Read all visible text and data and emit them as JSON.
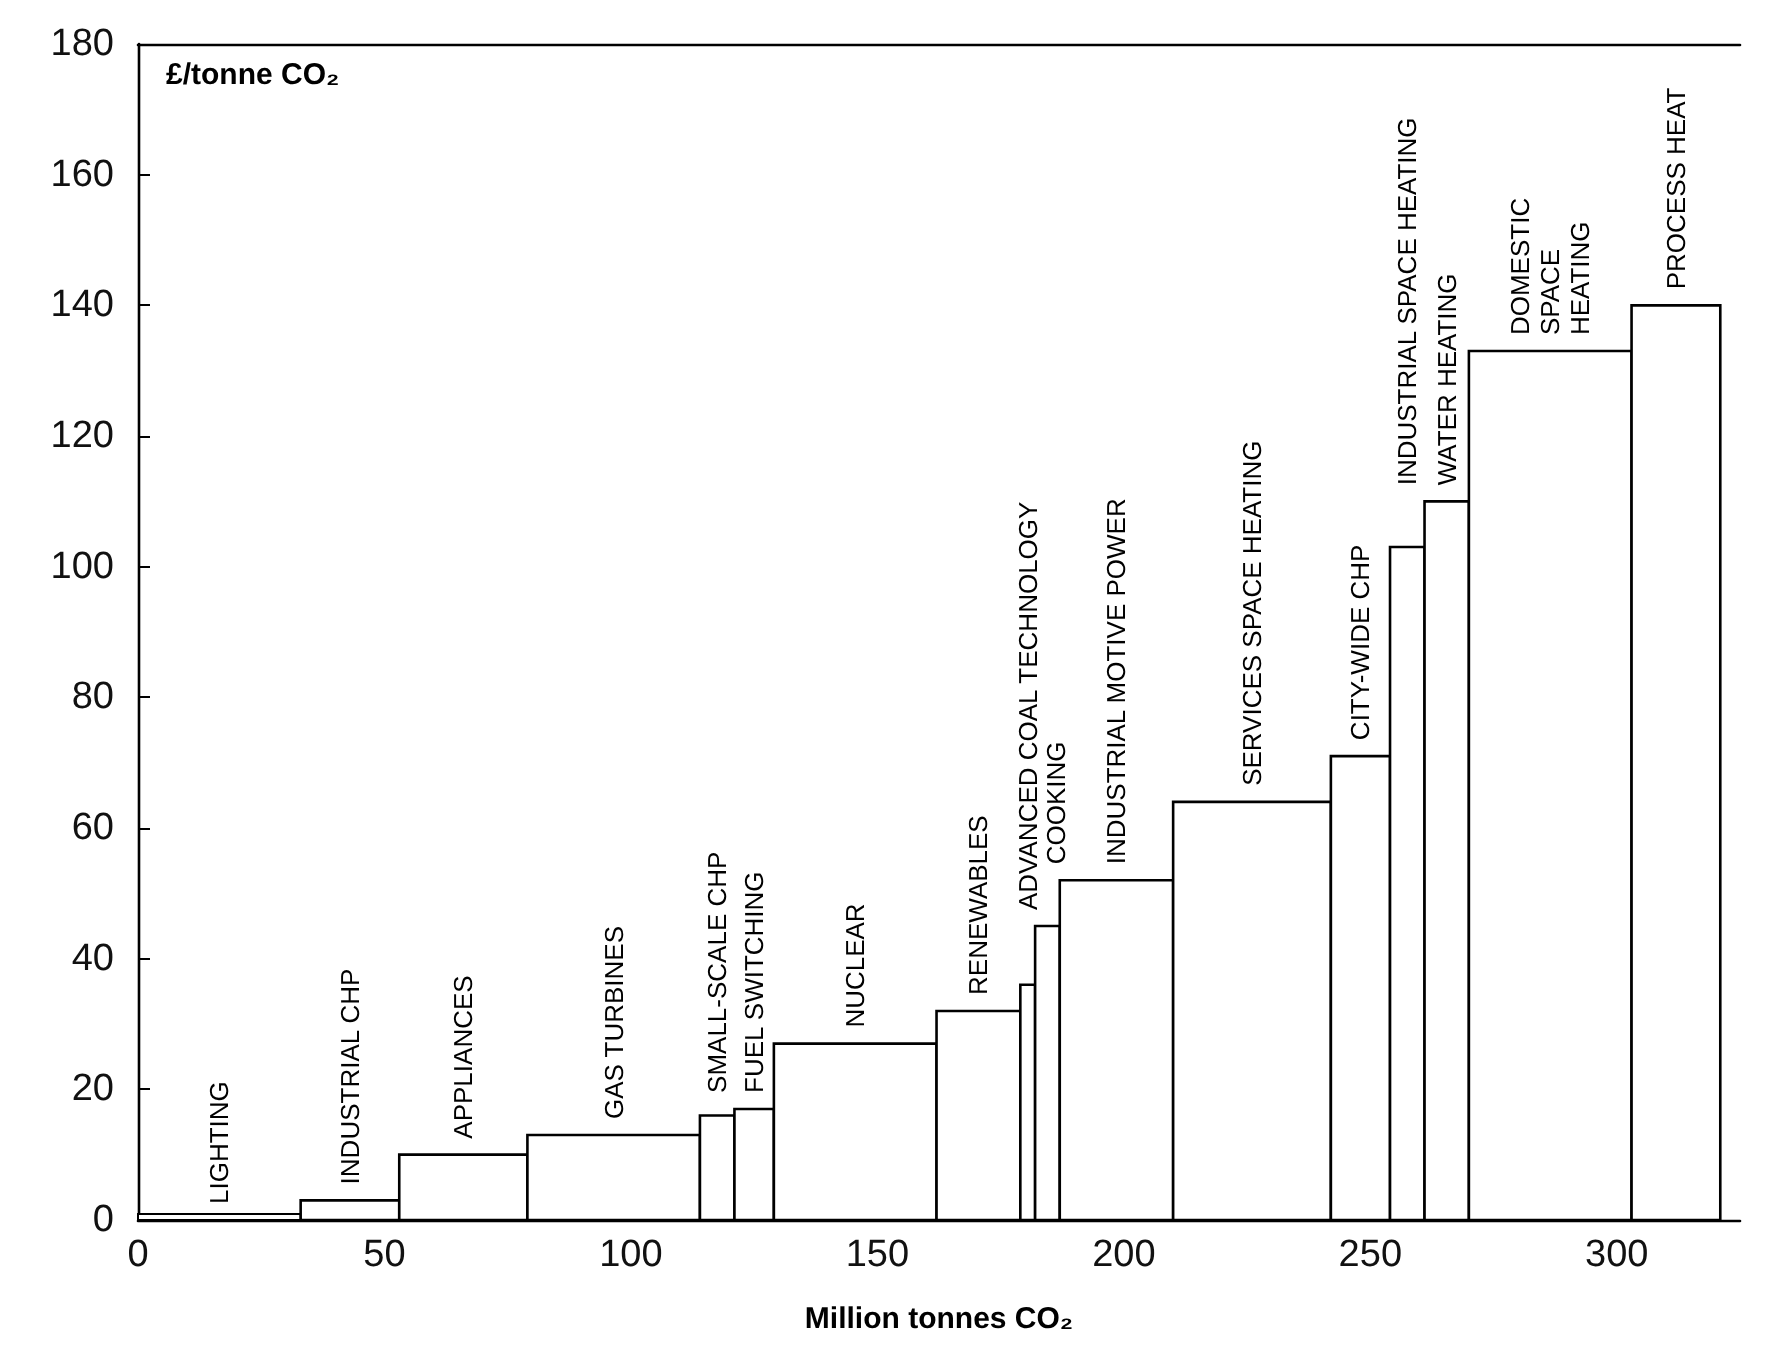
{
  "chart_data": {
    "type": "histogram",
    "ylabel": "£/tonne CO₂",
    "xlabel": "Million tonnes CO₂",
    "bins": [
      0,
      33,
      53,
      79,
      114,
      121,
      129,
      162,
      179,
      182,
      187,
      210,
      242,
      254,
      261,
      270,
      303,
      321
    ],
    "values": [
      0,
      3,
      10,
      13,
      16,
      17,
      27,
      32,
      36,
      45,
      52,
      64,
      71,
      103,
      110,
      133,
      140
    ],
    "color": "#ffffff",
    "xlim": [
      0,
      325
    ],
    "xticks": [
      0,
      50,
      100,
      150,
      200,
      250,
      300
    ],
    "ylim": [
      0,
      180
    ],
    "yticks": [
      0,
      20,
      40,
      60,
      80,
      100,
      120,
      140,
      160,
      180
    ],
    "grid": false,
    "annotations": [
      {
        "text": "LIGHTING",
        "x": 16.5,
        "y": 0
      },
      {
        "text": "INDUSTRIAL CHP",
        "x": 43,
        "y": 3
      },
      {
        "text": "APPLIANCES",
        "x": 66,
        "y": 10
      },
      {
        "text": "GAS TURBINES",
        "x": 96.5,
        "y": 13
      },
      {
        "text": "SMALL-SCALE CHP",
        "x": 117.5,
        "y": 16
      },
      {
        "text": "FUEL SWITCHING",
        "x": 125,
        "y": 17
      },
      {
        "text": "NUCLEAR",
        "x": 145.5,
        "y": 27
      },
      {
        "text": "RENEWABLES",
        "x": 170.5,
        "y": 32
      },
      {
        "text": "ADVANCED COAL TECHNOLOGY",
        "x": 180.5,
        "y": 36
      },
      {
        "text": "COOKING",
        "x": 184.5,
        "y": 45
      },
      {
        "text": "INDUSTRIAL MOTIVE POWER",
        "x": 198.5,
        "y": 52
      },
      {
        "text": "SERVICES SPACE HEATING",
        "x": 226,
        "y": 64
      },
      {
        "text": "CITY-WIDE CHP",
        "x": 248,
        "y": 71
      },
      {
        "text": "INDUSTRIAL SPACE HEATING",
        "x": 257.5,
        "y": 103
      },
      {
        "text": "WATER HEATING",
        "x": 265.5,
        "y": 110
      },
      {
        "text": "DOMESTIC\nSPACE\nHEATING",
        "x": 286.5,
        "y": 133
      },
      {
        "text": "PROCESS HEAT",
        "x": 312,
        "y": 140
      }
    ]
  }
}
